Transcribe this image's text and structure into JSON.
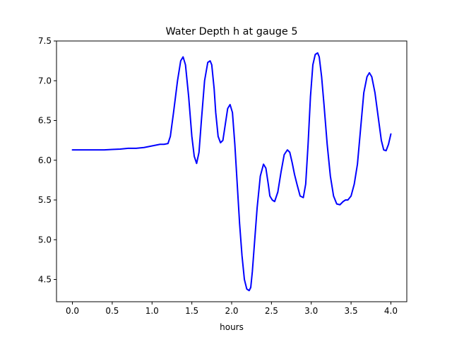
{
  "chart_data": {
    "type": "line",
    "title": "Water Depth h at gauge 5",
    "xlabel": "hours",
    "ylabel": "",
    "xlim": [
      -0.2,
      4.2
    ],
    "ylim": [
      4.22,
      7.5
    ],
    "xticks": [
      0.0,
      0.5,
      1.0,
      1.5,
      2.0,
      2.5,
      3.0,
      3.5,
      4.0
    ],
    "xtick_labels": [
      "0.0",
      "0.5",
      "1.0",
      "1.5",
      "2.0",
      "2.5",
      "3.0",
      "3.5",
      "4.0"
    ],
    "yticks": [
      4.5,
      5.0,
      5.5,
      6.0,
      6.5,
      7.0,
      7.5
    ],
    "ytick_labels": [
      "4.5",
      "5.0",
      "5.5",
      "6.0",
      "6.5",
      "7.0",
      "7.5"
    ],
    "grid": false,
    "legend": "none",
    "series": [
      {
        "color": "#0000ff",
        "x": [
          0.0,
          0.2,
          0.4,
          0.5,
          0.6,
          0.7,
          0.8,
          0.9,
          1.0,
          1.1,
          1.15,
          1.2,
          1.23,
          1.27,
          1.32,
          1.36,
          1.39,
          1.42,
          1.46,
          1.5,
          1.53,
          1.56,
          1.59,
          1.62,
          1.66,
          1.7,
          1.73,
          1.75,
          1.78,
          1.8,
          1.83,
          1.86,
          1.89,
          1.92,
          1.95,
          1.98,
          2.01,
          2.04,
          2.07,
          2.1,
          2.13,
          2.16,
          2.19,
          2.22,
          2.24,
          2.26,
          2.29,
          2.32,
          2.36,
          2.4,
          2.43,
          2.46,
          2.48,
          2.51,
          2.54,
          2.58,
          2.62,
          2.66,
          2.7,
          2.73,
          2.76,
          2.79,
          2.82,
          2.86,
          2.9,
          2.93,
          2.96,
          2.99,
          3.02,
          3.05,
          3.08,
          3.1,
          3.13,
          3.16,
          3.2,
          3.24,
          3.28,
          3.32,
          3.36,
          3.4,
          3.43,
          3.46,
          3.5,
          3.54,
          3.58,
          3.62,
          3.66,
          3.7,
          3.73,
          3.76,
          3.8,
          3.84,
          3.88,
          3.91,
          3.94,
          3.97,
          4.0
        ],
        "y": [
          6.13,
          6.13,
          6.13,
          6.135,
          6.14,
          6.15,
          6.15,
          6.16,
          6.18,
          6.2,
          6.2,
          6.21,
          6.3,
          6.6,
          7.0,
          7.25,
          7.3,
          7.2,
          6.8,
          6.3,
          6.05,
          5.96,
          6.1,
          6.5,
          7.0,
          7.23,
          7.25,
          7.2,
          6.9,
          6.6,
          6.3,
          6.22,
          6.25,
          6.45,
          6.65,
          6.7,
          6.6,
          6.2,
          5.7,
          5.2,
          4.8,
          4.5,
          4.38,
          4.36,
          4.4,
          4.6,
          5.0,
          5.4,
          5.8,
          5.95,
          5.9,
          5.7,
          5.55,
          5.5,
          5.48,
          5.6,
          5.85,
          6.07,
          6.13,
          6.1,
          5.97,
          5.82,
          5.7,
          5.55,
          5.53,
          5.7,
          6.2,
          6.8,
          7.2,
          7.33,
          7.35,
          7.3,
          7.05,
          6.7,
          6.2,
          5.8,
          5.55,
          5.45,
          5.44,
          5.48,
          5.5,
          5.5,
          5.55,
          5.7,
          5.95,
          6.4,
          6.85,
          7.05,
          7.1,
          7.05,
          6.85,
          6.55,
          6.25,
          6.13,
          6.12,
          6.2,
          6.33
        ]
      }
    ]
  }
}
